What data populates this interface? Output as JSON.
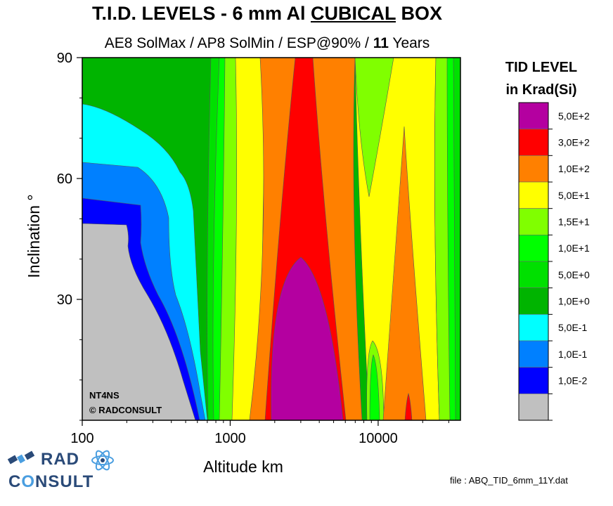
{
  "title": {
    "part1": "T.I.D. LEVELS - 6 mm Al ",
    "underlined": "CUBICAL",
    "part2": " BOX"
  },
  "subtitle": {
    "part1": "AE8 SolMax / AP8 SolMin / ESP@90% / ",
    "bold": "11",
    "part2": " Years"
  },
  "chart_data": {
    "type": "heatmap",
    "xlabel": "Altitude km",
    "ylabel": "Inclination °",
    "x_scale": "log",
    "xlim": [
      100,
      36000
    ],
    "ylim": [
      0,
      90
    ],
    "x_ticks": [
      "100",
      "1000",
      "10000"
    ],
    "y_ticks": [
      "90",
      "60",
      "30"
    ],
    "grid": false,
    "annotation": [
      "NT4NS",
      "©  RADCONSULT"
    ],
    "legend": {
      "title_line1": "TID LEVEL",
      "title_line2": "in Krad(Si)",
      "placement": "right",
      "levels": [
        {
          "label": "5,0E+2",
          "color": "#b400a0"
        },
        {
          "label": "3,0E+2",
          "color": "#ff0000"
        },
        {
          "label": "1,0E+2",
          "color": "#ff8000"
        },
        {
          "label": "5,0E+1",
          "color": "#ffff00"
        },
        {
          "label": "1,5E+1",
          "color": "#80ff00"
        },
        {
          "label": "1,0E+1",
          "color": "#00ff00"
        },
        {
          "label": "5,0E+0",
          "color": "#00e000"
        },
        {
          "label": "1,0E+0",
          "color": "#00b400"
        },
        {
          "label": "5,0E-1",
          "color": "#00ffff"
        },
        {
          "label": "1,0E-1",
          "color": "#0080ff"
        },
        {
          "label": "1,0E-2",
          "color": "#0000ff"
        },
        {
          "label": "",
          "color": "#c0c0c0"
        }
      ]
    },
    "bands_at_low_inclination": [
      {
        "altitude_km": 100,
        "level": "<1,0E-2"
      },
      {
        "altitude_km": 650,
        "level": "1,0E-2"
      },
      {
        "altitude_km": 700,
        "level": "5,0E-1"
      },
      {
        "altitude_km": 750,
        "level": "1,0E+1"
      },
      {
        "altitude_km": 900,
        "level": "1,5E+1"
      },
      {
        "altitude_km": 1100,
        "level": "5,0E+1"
      },
      {
        "altitude_km": 1500,
        "level": "1,0E+2"
      },
      {
        "altitude_km": 2000,
        "level": "3,0E+2"
      },
      {
        "altitude_km": 3000,
        "level": "5,0E+2"
      },
      {
        "altitude_km": 6000,
        "level": "3,0E+2"
      },
      {
        "altitude_km": 7000,
        "level": "1,0E+2"
      },
      {
        "altitude_km": 9000,
        "level": "5,0E+1"
      },
      {
        "altitude_km": 15000,
        "level": "1,0E+2"
      },
      {
        "altitude_km": 30000,
        "level": "1,5E+1"
      }
    ]
  },
  "file_note": "file : ABQ_TID_6mm_11Y.dat",
  "logo": {
    "line1": "RAD",
    "line2_a": "C",
    "line2_b": "O",
    "line2_c": "NSULT"
  }
}
